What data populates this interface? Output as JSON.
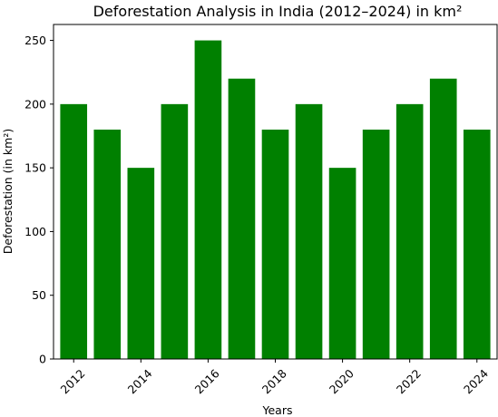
{
  "chart_data": {
    "type": "bar",
    "title": "Deforestation Analysis in India (2012–2024) in km²",
    "xlabel": "Years",
    "ylabel": "Deforestation (in km²)",
    "x": [
      2012,
      2013,
      2014,
      2015,
      2016,
      2017,
      2018,
      2019,
      2020,
      2021,
      2022,
      2023,
      2024
    ],
    "values": [
      200,
      180,
      150,
      200,
      250,
      220,
      180,
      200,
      150,
      180,
      200,
      220,
      180
    ],
    "x_ticks": [
      "2012",
      "2014",
      "2016",
      "2018",
      "2020",
      "2022",
      "2024"
    ],
    "y_ticks": [
      "0",
      "50",
      "100",
      "150",
      "200",
      "250"
    ],
    "ylim": [
      0,
      262.5
    ],
    "xlim": [
      2011.4,
      2024.6
    ],
    "grid": false,
    "bar_color": "#008000",
    "x_tick_rotation": "45deg"
  }
}
